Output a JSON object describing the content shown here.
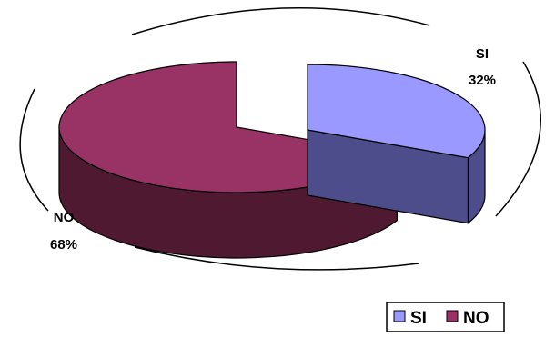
{
  "chart_data": {
    "type": "pie",
    "style": "3d-exploded",
    "labels": [
      "SI",
      "NO"
    ],
    "values": [
      32,
      68
    ],
    "percent_labels": [
      "32%",
      "68%"
    ],
    "colors": {
      "SI": {
        "top": "#9999ff",
        "side": "#4d4d8c"
      },
      "NO": {
        "top": "#993366",
        "side": "#4f1932"
      }
    },
    "legend": {
      "position": "bottom-right",
      "entries": [
        "SI",
        "NO"
      ]
    }
  }
}
